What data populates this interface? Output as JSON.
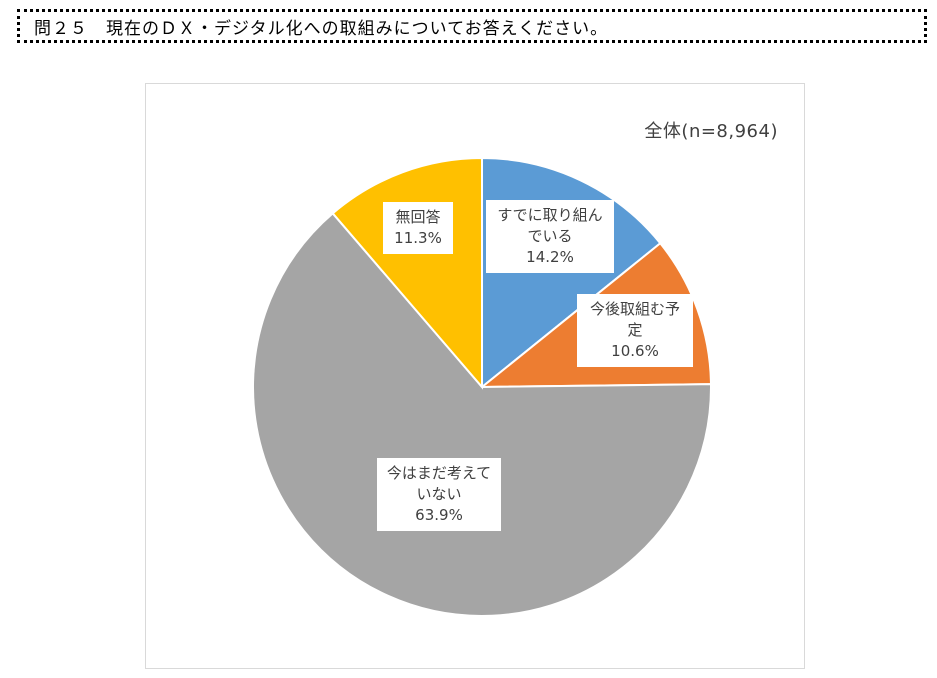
{
  "question": {
    "text": "問２５　現在のＤＸ・デジタル化への取組みについてお答えください。"
  },
  "chart_data": {
    "type": "pie",
    "title": "全体(n=8,964)",
    "start_angle_deg": 0,
    "direction": "clockwise",
    "slices": [
      {
        "label_lines": [
          "すでに取り組ん",
          "でいる"
        ],
        "percent_text": "14.2%",
        "value": 14.2,
        "color": "#5B9BD5"
      },
      {
        "label_lines": [
          "今後取組む予",
          "定"
        ],
        "percent_text": "10.6%",
        "value": 10.6,
        "color": "#ED7D31"
      },
      {
        "label_lines": [
          "今はまだ考えて",
          "いない"
        ],
        "percent_text": "63.9%",
        "value": 63.9,
        "color": "#A5A5A5"
      },
      {
        "label_lines": [
          "無回答"
        ],
        "percent_text": "11.3%",
        "value": 11.3,
        "color": "#FFC000"
      }
    ]
  }
}
